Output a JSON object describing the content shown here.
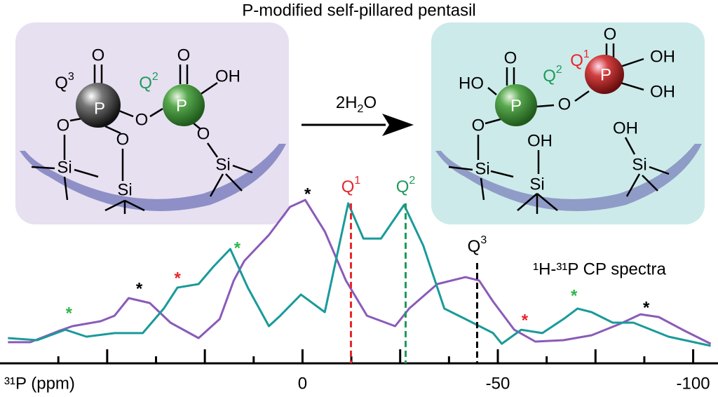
{
  "chart_data": {
    "type": "line",
    "title": "P-modified self-pillared pentasil",
    "x_label": "³¹P (ppm)",
    "spectra_label": "¹H-³¹P CP spectra",
    "xlim": [
      76,
      -106
    ],
    "ylim": [
      0,
      110
    ],
    "xticks": [
      0,
      -50,
      -100
    ],
    "minor_xticks": [
      62.5,
      50,
      37.5,
      25,
      12.5,
      -12.5,
      -25,
      -37.5,
      -62.5,
      -75,
      -87.5
    ],
    "series": [
      {
        "color": "#8a5bb8",
        "x": [
          75.4,
          69.7,
          62.5,
          58.9,
          51.7,
          48.1,
          44.5,
          39.1,
          33.8,
          26.6,
          21.2,
          17.6,
          14.9,
          8.6,
          3.2,
          -0.7,
          -5.7,
          -11.1,
          -16.5,
          -23.7,
          -27.3,
          -34.5,
          -41.7,
          -45.2,
          -48.8,
          -54.2,
          -59.6,
          -66.8,
          -74.0,
          -81.2,
          -86.5,
          -91.2,
          -97.3,
          -104.5
        ],
        "values": [
          5.5,
          5.5,
          12.7,
          15.9,
          19.1,
          22.7,
          34.1,
          30.9,
          18.2,
          8.2,
          20.5,
          45.5,
          58.2,
          75,
          93.2,
          97.7,
          77.3,
          45.5,
          22.7,
          15.9,
          27.3,
          43.2,
          47.7,
          45.5,
          31.8,
          13.6,
          5.9,
          6.8,
          10,
          17.3,
          23.6,
          21.8,
          13.6,
          4.5
        ]
      },
      {
        "color": "#1a9a9a",
        "x": [
          75.4,
          67.9,
          60.7,
          55.3,
          48.1,
          40.9,
          35.5,
          32,
          26.6,
          22.8,
          18.5,
          14,
          8.6,
          5.7,
          0.4,
          -5.7,
          -11.7,
          -15.6,
          -20.1,
          -26,
          -30.9,
          -36.3,
          -41.7,
          -48.8,
          -51,
          -56,
          -61.4,
          -66.8,
          -70.4,
          -74,
          -79.4,
          -84.7,
          -93.7,
          -104.5
        ],
        "values": [
          8.2,
          6.8,
          13.6,
          9.1,
          11.4,
          11.4,
          27.3,
          40.9,
          43.2,
          54.5,
          65.9,
          40.9,
          15.9,
          22.7,
          36.4,
          25,
          95.5,
          72.7,
          72.7,
          94.5,
          68.2,
          27.3,
          20.5,
          11.4,
          4.5,
          13.6,
          11.4,
          20.5,
          27.3,
          25,
          18.2,
          18.2,
          9.1,
          3.2
        ]
      }
    ],
    "annotations": [
      {
        "text": "*",
        "x": 59.8,
        "y": 27.3,
        "color": "#2db84a"
      },
      {
        "text": "*",
        "x": 41.8,
        "y": 43.2,
        "color": "#000000"
      },
      {
        "text": "*",
        "x": 32,
        "y": 50,
        "color": "#e8262b"
      },
      {
        "text": "*",
        "x": 16.7,
        "y": 69.5,
        "color": "#2db84a"
      },
      {
        "text": "*",
        "x": -1.3,
        "y": 104.5,
        "color": "#000000"
      },
      {
        "text": "*",
        "x": -56.9,
        "y": 22.7,
        "color": "#e8262b"
      },
      {
        "text": "*",
        "x": -69.5,
        "y": 38.6,
        "color": "#2db84a"
      },
      {
        "text": "*",
        "x": -88,
        "y": 30.9,
        "color": "#000000"
      }
    ],
    "markers": [
      {
        "label": "Q",
        "sup": "1",
        "x": -12.4,
        "y": 95.5,
        "color": "#e8262b"
      },
      {
        "label": "Q",
        "sup": "2",
        "x": -26.4,
        "y": 95.5,
        "color": "#1e9a5a"
      },
      {
        "label": "Q",
        "sup": "3",
        "x": -44.7,
        "y": 56.8,
        "color": "#000000"
      }
    ]
  },
  "diagram": {
    "reagent": [
      "2H",
      "2",
      "O"
    ],
    "left": [
      {
        "text": "O"
      },
      {
        "text": "Q",
        "sup": "3"
      },
      {
        "text": "P"
      },
      {
        "text": "O"
      },
      {
        "text": "P"
      },
      {
        "text": "O"
      },
      {
        "text": "Q",
        "sup": "2"
      },
      {
        "text": "OH"
      },
      {
        "text": "O"
      },
      {
        "text": "O"
      },
      {
        "text": "O"
      },
      {
        "text": "Si"
      },
      {
        "text": "Si"
      },
      {
        "text": "Si"
      }
    ],
    "right": [
      {
        "text": "HO"
      },
      {
        "text": "P"
      },
      {
        "text": "O"
      },
      {
        "text": "Q",
        "sup": "2"
      },
      {
        "text": "O"
      },
      {
        "text": "P"
      },
      {
        "text": "O"
      },
      {
        "text": "Q",
        "sup": "1"
      },
      {
        "text": "OH"
      },
      {
        "text": "OH"
      },
      {
        "text": "O"
      },
      {
        "text": "OH"
      },
      {
        "text": "OH"
      },
      {
        "text": "Si"
      },
      {
        "text": "Si"
      },
      {
        "text": "Si"
      }
    ]
  }
}
